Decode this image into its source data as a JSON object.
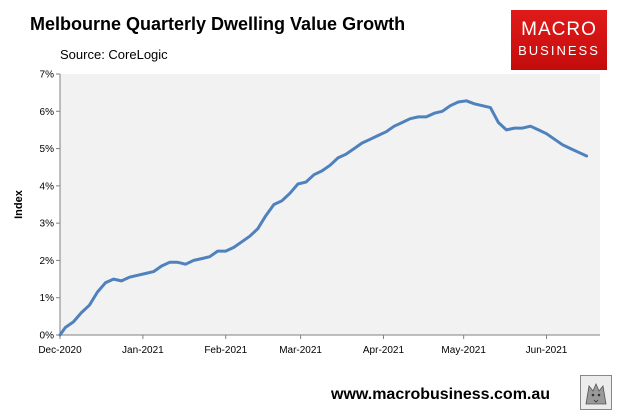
{
  "header": {
    "title": "Melbourne Quarterly Dwelling Value Growth",
    "subtitle": "Source: CoreLogic"
  },
  "logo": {
    "line1": "MACRO",
    "line2": "BUSINESS",
    "color": "#d51414"
  },
  "footer": {
    "url": "www.macrobusiness.com.au"
  },
  "chart_data": {
    "type": "line",
    "title": "Melbourne Quarterly Dwelling Value Growth",
    "xlabel": "",
    "ylabel": "Index",
    "ylim": [
      0,
      7
    ],
    "yticks": [
      "0%",
      "1%",
      "2%",
      "3%",
      "4%",
      "5%",
      "6%",
      "7%"
    ],
    "xticks": [
      "Dec-2020",
      "Jan-2021",
      "Feb-2021",
      "Mar-2021",
      "Apr-2021",
      "May-2021",
      "Jun-2021"
    ],
    "grid": false,
    "line_color": "#4f81bd",
    "plot_background": "#f2f2f2",
    "series": [
      {
        "x": [
          "2020-12-01",
          "2020-12-03",
          "2020-12-06",
          "2020-12-09",
          "2020-12-12",
          "2020-12-15",
          "2020-12-18",
          "2020-12-21",
          "2020-12-24",
          "2020-12-27",
          "2020-12-30",
          "2021-01-02",
          "2021-01-05",
          "2021-01-08",
          "2021-01-11",
          "2021-01-14",
          "2021-01-17",
          "2021-01-20",
          "2021-01-23",
          "2021-01-26",
          "2021-01-29",
          "2021-02-01",
          "2021-02-04",
          "2021-02-07",
          "2021-02-10",
          "2021-02-13",
          "2021-02-16",
          "2021-02-19",
          "2021-02-22",
          "2021-02-25",
          "2021-02-28",
          "2021-03-03",
          "2021-03-06",
          "2021-03-09",
          "2021-03-12",
          "2021-03-15",
          "2021-03-18",
          "2021-03-21",
          "2021-03-24",
          "2021-03-27",
          "2021-03-30",
          "2021-04-02",
          "2021-04-05",
          "2021-04-08",
          "2021-04-11",
          "2021-04-14",
          "2021-04-17",
          "2021-04-20",
          "2021-04-23",
          "2021-04-26",
          "2021-04-29",
          "2021-05-02",
          "2021-05-05",
          "2021-05-08",
          "2021-05-11",
          "2021-05-14",
          "2021-05-17",
          "2021-05-20",
          "2021-05-23",
          "2021-05-26",
          "2021-05-29",
          "2021-06-01",
          "2021-06-04",
          "2021-06-07",
          "2021-06-10",
          "2021-06-13",
          "2021-06-16"
        ],
        "values": [
          0.0,
          0.2,
          0.35,
          0.6,
          0.8,
          1.15,
          1.4,
          1.5,
          1.45,
          1.55,
          1.6,
          1.65,
          1.7,
          1.85,
          1.95,
          1.95,
          1.9,
          2.0,
          2.05,
          2.1,
          2.25,
          2.25,
          2.35,
          2.5,
          2.65,
          2.85,
          3.2,
          3.5,
          3.6,
          3.8,
          4.05,
          4.1,
          4.3,
          4.4,
          4.55,
          4.75,
          4.85,
          5.0,
          5.15,
          5.25,
          5.35,
          5.45,
          5.6,
          5.7,
          5.8,
          5.85,
          5.85,
          5.95,
          6.0,
          6.15,
          6.25,
          6.28,
          6.2,
          6.15,
          6.1,
          5.7,
          5.5,
          5.55,
          5.55,
          5.6,
          5.5,
          5.4,
          5.25,
          5.1,
          5.0,
          4.9,
          4.8
        ]
      }
    ]
  }
}
